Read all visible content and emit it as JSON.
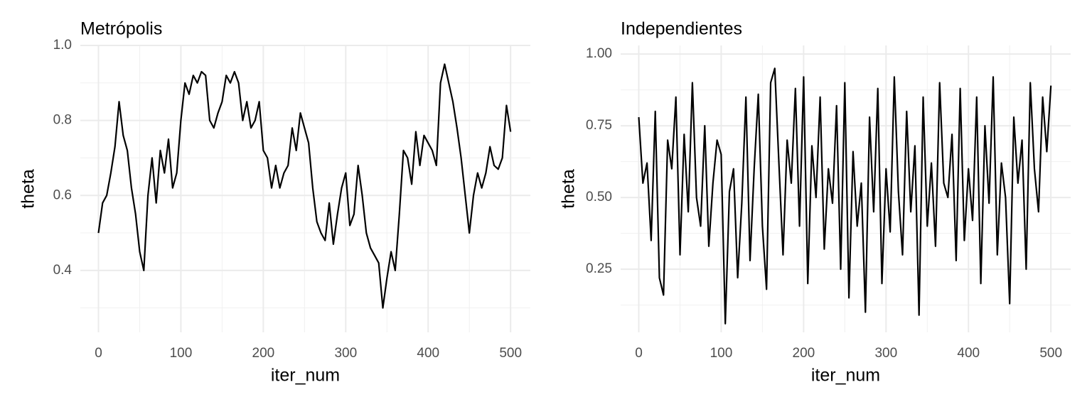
{
  "chart_data": [
    {
      "type": "line",
      "title": "Metrópolis",
      "xlabel": "iter_num",
      "ylabel": "theta",
      "x": [
        0,
        5,
        10,
        15,
        20,
        25,
        30,
        35,
        40,
        45,
        50,
        55,
        60,
        65,
        70,
        75,
        80,
        85,
        90,
        95,
        100,
        105,
        110,
        115,
        120,
        125,
        130,
        135,
        140,
        145,
        150,
        155,
        160,
        165,
        170,
        175,
        180,
        185,
        190,
        195,
        200,
        205,
        210,
        215,
        220,
        225,
        230,
        235,
        240,
        245,
        250,
        255,
        260,
        265,
        270,
        275,
        280,
        285,
        290,
        295,
        300,
        305,
        310,
        315,
        320,
        325,
        330,
        335,
        340,
        345,
        350,
        355,
        360,
        365,
        370,
        375,
        380,
        385,
        390,
        395,
        400,
        405,
        410,
        415,
        420,
        425,
        430,
        435,
        440,
        445,
        450,
        455,
        460,
        465,
        470,
        475,
        480,
        485,
        490,
        495,
        500
      ],
      "values": [
        0.5,
        0.58,
        0.6,
        0.66,
        0.73,
        0.85,
        0.76,
        0.72,
        0.62,
        0.55,
        0.45,
        0.4,
        0.6,
        0.7,
        0.58,
        0.72,
        0.66,
        0.75,
        0.62,
        0.66,
        0.8,
        0.9,
        0.87,
        0.92,
        0.9,
        0.93,
        0.92,
        0.8,
        0.78,
        0.82,
        0.85,
        0.92,
        0.9,
        0.93,
        0.9,
        0.8,
        0.85,
        0.78,
        0.8,
        0.85,
        0.72,
        0.7,
        0.62,
        0.68,
        0.62,
        0.66,
        0.68,
        0.78,
        0.72,
        0.82,
        0.78,
        0.74,
        0.62,
        0.53,
        0.5,
        0.48,
        0.58,
        0.47,
        0.55,
        0.62,
        0.66,
        0.52,
        0.55,
        0.68,
        0.6,
        0.5,
        0.46,
        0.44,
        0.42,
        0.3,
        0.38,
        0.45,
        0.4,
        0.55,
        0.72,
        0.7,
        0.63,
        0.77,
        0.68,
        0.76,
        0.74,
        0.72,
        0.68,
        0.9,
        0.95,
        0.9,
        0.85,
        0.78,
        0.7,
        0.6,
        0.5,
        0.6,
        0.66,
        0.62,
        0.66,
        0.73,
        0.68,
        0.67,
        0.7,
        0.84,
        0.77
      ],
      "color": "#000000",
      "xlim": [
        -22,
        524
      ],
      "ylim": [
        0.235,
        1.0
      ],
      "xticks": [
        0,
        100,
        200,
        300,
        400,
        500
      ],
      "yticks": [
        {
          "value": 1.0,
          "label": "1.0"
        },
        0.8,
        0.6,
        0.4
      ],
      "xminor": [
        50,
        150,
        250,
        350,
        450
      ],
      "yminor": [
        0.3,
        0.5,
        0.7,
        0.9
      ],
      "grid": true
    },
    {
      "type": "line",
      "title": "Independientes",
      "xlabel": "iter_num",
      "ylabel": "theta",
      "x": [
        0,
        5,
        10,
        15,
        20,
        25,
        30,
        35,
        40,
        45,
        50,
        55,
        60,
        65,
        70,
        75,
        80,
        85,
        90,
        95,
        100,
        105,
        110,
        115,
        120,
        125,
        130,
        135,
        140,
        145,
        150,
        155,
        160,
        165,
        170,
        175,
        180,
        185,
        190,
        195,
        200,
        205,
        210,
        215,
        220,
        225,
        230,
        235,
        240,
        245,
        250,
        255,
        260,
        265,
        270,
        275,
        280,
        285,
        290,
        295,
        300,
        305,
        310,
        315,
        320,
        325,
        330,
        335,
        340,
        345,
        350,
        355,
        360,
        365,
        370,
        375,
        380,
        385,
        390,
        395,
        400,
        405,
        410,
        415,
        420,
        425,
        430,
        435,
        440,
        445,
        450,
        455,
        460,
        465,
        470,
        475,
        480,
        485,
        490,
        495,
        500
      ],
      "values": [
        0.78,
        0.55,
        0.62,
        0.35,
        0.8,
        0.22,
        0.16,
        0.7,
        0.6,
        0.85,
        0.3,
        0.72,
        0.45,
        0.9,
        0.5,
        0.4,
        0.75,
        0.33,
        0.55,
        0.7,
        0.65,
        0.06,
        0.52,
        0.6,
        0.22,
        0.48,
        0.85,
        0.28,
        0.6,
        0.86,
        0.4,
        0.18,
        0.9,
        0.95,
        0.62,
        0.3,
        0.7,
        0.55,
        0.88,
        0.4,
        0.92,
        0.2,
        0.68,
        0.5,
        0.85,
        0.32,
        0.6,
        0.48,
        0.82,
        0.25,
        0.9,
        0.15,
        0.66,
        0.4,
        0.55,
        0.1,
        0.78,
        0.45,
        0.88,
        0.2,
        0.6,
        0.38,
        0.92,
        0.52,
        0.3,
        0.8,
        0.45,
        0.68,
        0.09,
        0.85,
        0.4,
        0.62,
        0.33,
        0.9,
        0.55,
        0.5,
        0.72,
        0.28,
        0.88,
        0.35,
        0.6,
        0.42,
        0.85,
        0.2,
        0.75,
        0.48,
        0.92,
        0.3,
        0.62,
        0.5,
        0.13,
        0.78,
        0.55,
        0.7,
        0.25,
        0.9,
        0.6,
        0.45,
        0.85,
        0.66,
        0.89
      ],
      "color": "#000000",
      "xlim": [
        -22,
        524
      ],
      "ylim": [
        0.03,
        1.03
      ],
      "xticks": [
        0,
        100,
        200,
        300,
        400,
        500
      ],
      "yticks": [
        {
          "value": 1.0,
          "label": "1.00"
        },
        {
          "value": 0.75,
          "label": "0.75"
        },
        {
          "value": 0.5,
          "label": "0.50"
        },
        {
          "value": 0.25,
          "label": "0.25"
        }
      ],
      "xminor": [
        50,
        150,
        250,
        350,
        450
      ],
      "yminor": [
        0.125,
        0.375,
        0.625,
        0.875
      ],
      "grid": true
    }
  ]
}
